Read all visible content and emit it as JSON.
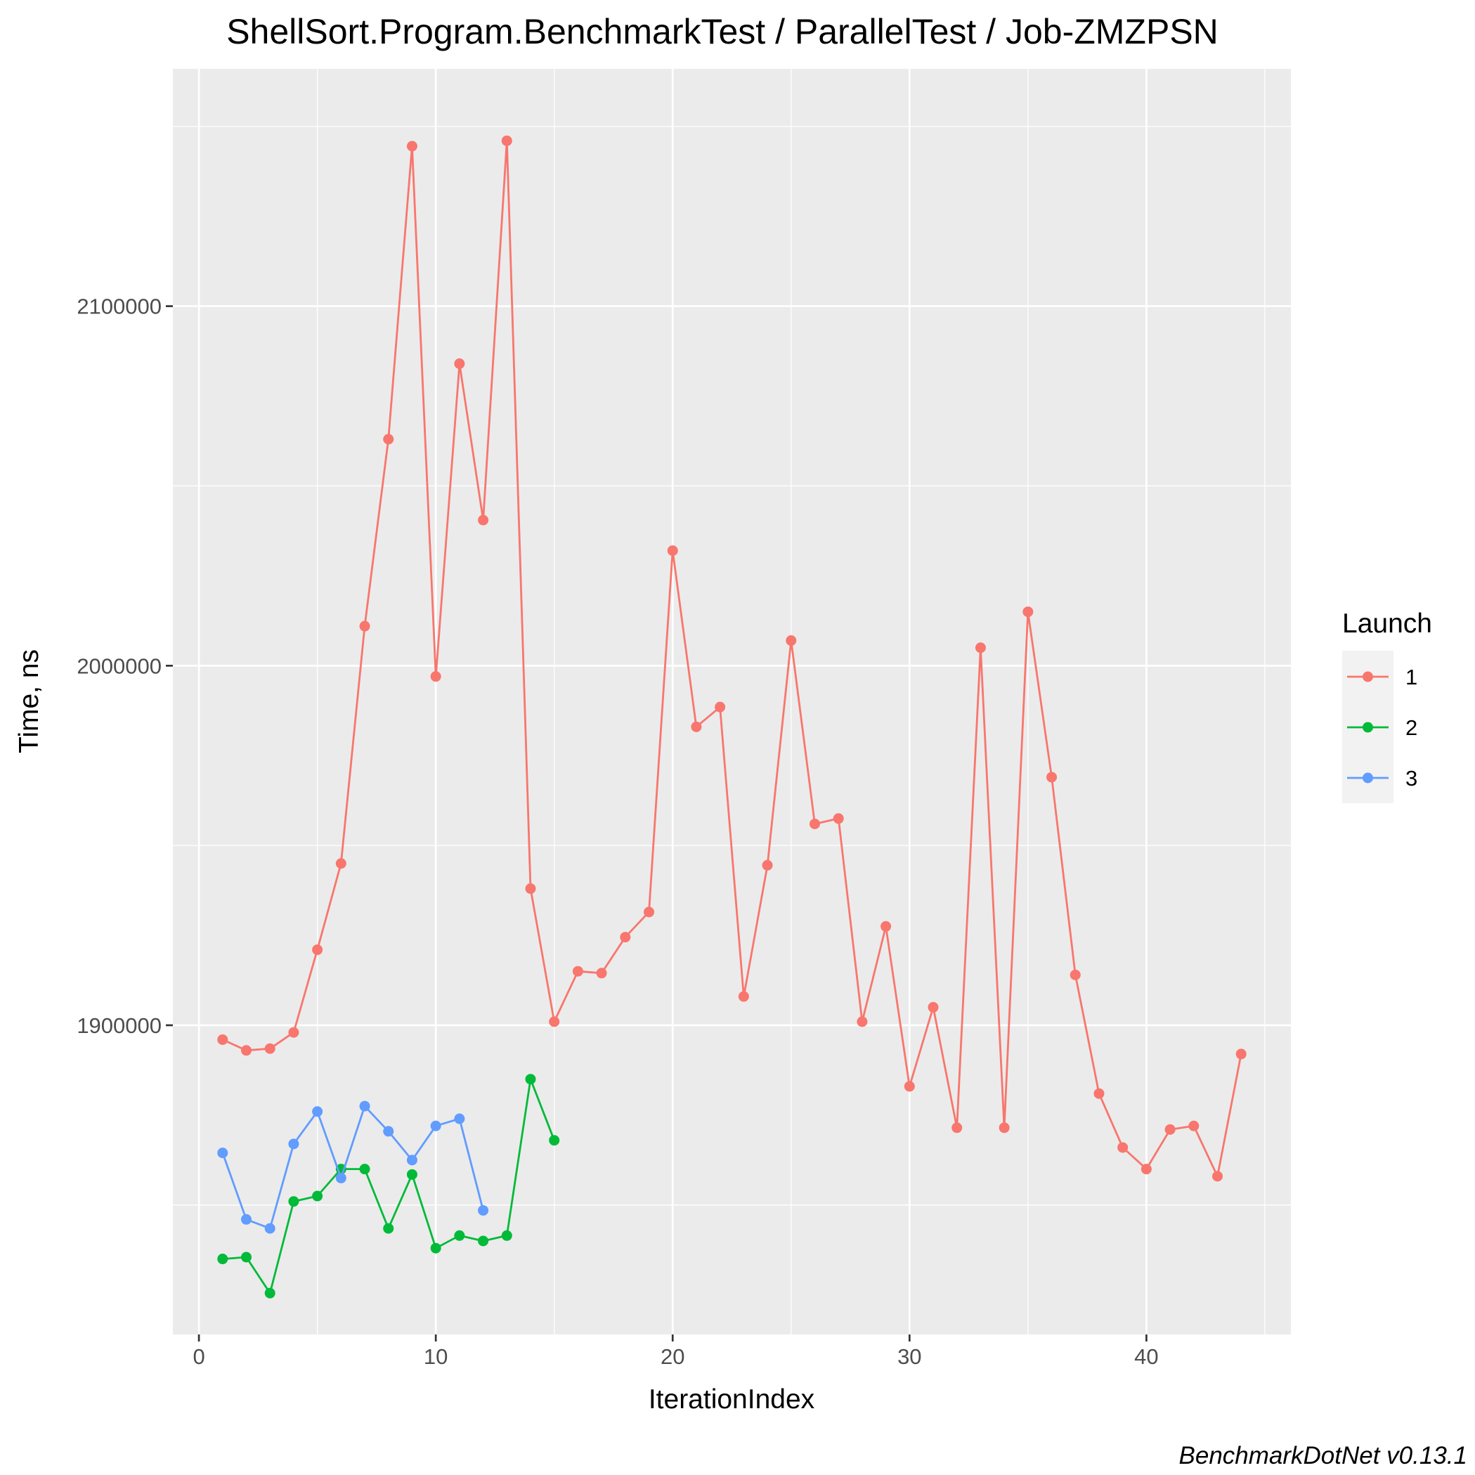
{
  "chart_data": {
    "type": "line",
    "title": "ShellSort.Program.BenchmarkTest / ParallelTest / Job-ZMZPSN",
    "xlabel": "IterationIndex",
    "ylabel": "Time, ns",
    "caption": "BenchmarkDotNet v0.13.1",
    "xlim": [
      -1.1,
      46.1
    ],
    "ylim": [
      1814000,
      2166000
    ],
    "x_ticks": [
      0,
      10,
      20,
      30,
      40
    ],
    "x_tick_labels": [
      "0",
      "10",
      "20",
      "30",
      "40"
    ],
    "y_ticks": [
      1900000,
      2000000,
      2100000
    ],
    "y_tick_labels": [
      "1900000",
      "2000000",
      "2100000"
    ],
    "grid": true,
    "legend": {
      "title": "Launch",
      "placement": "right"
    },
    "series": [
      {
        "name": "1",
        "color": "#F8766D",
        "x": [
          1,
          2,
          3,
          4,
          5,
          6,
          7,
          8,
          9,
          10,
          11,
          12,
          13,
          14,
          15,
          16,
          17,
          18,
          19,
          20,
          21,
          22,
          23,
          24,
          25,
          26,
          27,
          28,
          29,
          30,
          31,
          32,
          33,
          34,
          35,
          36,
          37,
          38,
          39,
          40,
          41,
          42,
          43,
          44
        ],
        "y": [
          1896000,
          1893000,
          1893500,
          1898000,
          1921000,
          1945000,
          2011000,
          2063000,
          2144500,
          1997000,
          2084000,
          2040500,
          2146000,
          1938000,
          1901000,
          1915000,
          1914500,
          1924500,
          1931500,
          2032000,
          1983000,
          1988500,
          1908000,
          1944500,
          2007000,
          1956000,
          1957500,
          1901000,
          1927500,
          1883000,
          1905000,
          1871500,
          2005000,
          1871500,
          2015000,
          1969000,
          1914000,
          1881000,
          1866000,
          1860000,
          1871000,
          1872000,
          1858000,
          1892000
        ]
      },
      {
        "name": "2",
        "color": "#00BA38",
        "x": [
          1,
          2,
          3,
          4,
          5,
          6,
          7,
          8,
          9,
          10,
          11,
          12,
          13,
          14,
          15
        ],
        "y": [
          1835000,
          1835500,
          1825500,
          1851000,
          1852500,
          1860000,
          1860000,
          1843500,
          1858500,
          1838000,
          1841500,
          1840000,
          1841500,
          1885000,
          1868000
        ]
      },
      {
        "name": "3",
        "color": "#619CFF",
        "x": [
          1,
          2,
          3,
          4,
          5,
          6,
          7,
          8,
          9,
          10,
          11,
          12
        ],
        "y": [
          1864500,
          1846000,
          1843500,
          1867000,
          1876000,
          1857500,
          1877500,
          1870500,
          1862500,
          1872000,
          1874000,
          1848500
        ]
      }
    ]
  }
}
